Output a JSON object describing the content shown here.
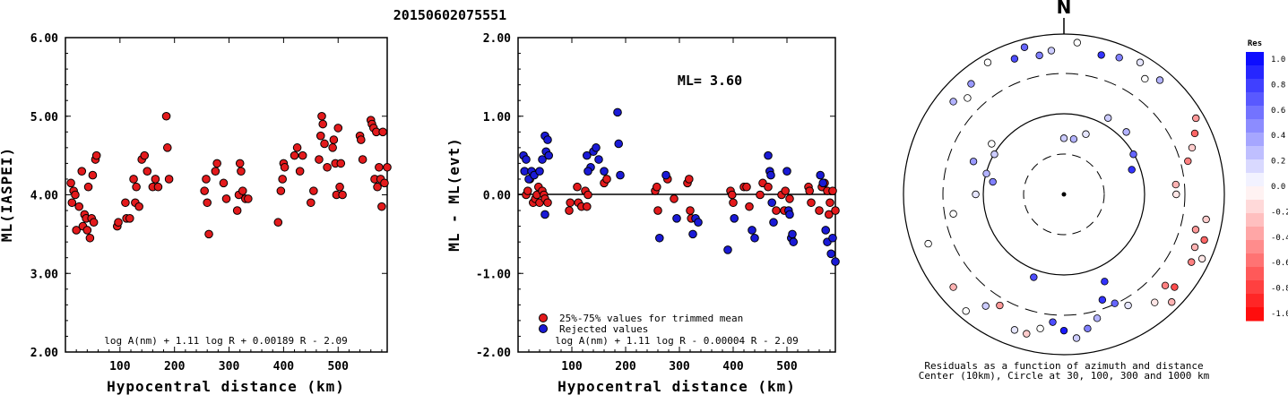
{
  "title": "20150602075551",
  "chart_data": [
    {
      "type": "scatter",
      "ylabel": "ML(IASPEI)",
      "xlabel": "Hypocentral distance (km)",
      "xlim": [
        0,
        590
      ],
      "ylim": [
        2.0,
        6.0
      ],
      "xticks": [
        100,
        200,
        300,
        400,
        500
      ],
      "yticks": [
        2.0,
        3.0,
        4.0,
        5.0,
        6.0
      ],
      "ytick_labels": [
        "2.00",
        "3.00",
        "4.00",
        "5.00",
        "6.00"
      ],
      "formula": "log A(nm) + 1.11 log R + 0.00189 R - 2.09",
      "points_color": "#e31a1c",
      "points": [
        [
          10,
          4.15
        ],
        [
          12,
          3.9
        ],
        [
          15,
          4.05
        ],
        [
          18,
          4.0
        ],
        [
          20,
          3.55
        ],
        [
          25,
          3.85
        ],
        [
          30,
          4.3
        ],
        [
          32,
          3.6
        ],
        [
          35,
          3.75
        ],
        [
          38,
          3.7
        ],
        [
          40,
          3.55
        ],
        [
          42,
          4.1
        ],
        [
          45,
          3.45
        ],
        [
          48,
          3.7
        ],
        [
          50,
          4.25
        ],
        [
          52,
          3.65
        ],
        [
          55,
          4.45
        ],
        [
          57,
          4.5
        ],
        [
          95,
          3.6
        ],
        [
          97,
          3.65
        ],
        [
          110,
          3.9
        ],
        [
          112,
          3.7
        ],
        [
          118,
          3.7
        ],
        [
          125,
          4.2
        ],
        [
          128,
          3.9
        ],
        [
          130,
          4.1
        ],
        [
          135,
          3.85
        ],
        [
          140,
          4.45
        ],
        [
          145,
          4.5
        ],
        [
          150,
          4.3
        ],
        [
          160,
          4.1
        ],
        [
          165,
          4.2
        ],
        [
          170,
          4.1
        ],
        [
          185,
          5.0
        ],
        [
          187,
          4.6
        ],
        [
          190,
          4.2
        ],
        [
          255,
          4.05
        ],
        [
          258,
          4.2
        ],
        [
          260,
          3.9
        ],
        [
          263,
          3.5
        ],
        [
          275,
          4.3
        ],
        [
          278,
          4.4
        ],
        [
          290,
          4.15
        ],
        [
          295,
          3.95
        ],
        [
          315,
          3.8
        ],
        [
          318,
          4.0
        ],
        [
          320,
          4.4
        ],
        [
          322,
          4.3
        ],
        [
          325,
          4.05
        ],
        [
          330,
          3.95
        ],
        [
          335,
          3.95
        ],
        [
          390,
          3.65
        ],
        [
          395,
          4.05
        ],
        [
          398,
          4.2
        ],
        [
          400,
          4.4
        ],
        [
          402,
          4.35
        ],
        [
          420,
          4.5
        ],
        [
          425,
          4.6
        ],
        [
          430,
          4.3
        ],
        [
          435,
          4.5
        ],
        [
          450,
          3.9
        ],
        [
          455,
          4.05
        ],
        [
          465,
          4.45
        ],
        [
          468,
          4.75
        ],
        [
          470,
          5.0
        ],
        [
          472,
          4.9
        ],
        [
          475,
          4.65
        ],
        [
          480,
          4.35
        ],
        [
          490,
          4.6
        ],
        [
          492,
          4.7
        ],
        [
          495,
          4.4
        ],
        [
          497,
          4.0
        ],
        [
          500,
          4.85
        ],
        [
          503,
          4.1
        ],
        [
          505,
          4.4
        ],
        [
          508,
          4.0
        ],
        [
          540,
          4.75
        ],
        [
          542,
          4.7
        ],
        [
          545,
          4.45
        ],
        [
          560,
          4.95
        ],
        [
          562,
          4.9
        ],
        [
          565,
          4.85
        ],
        [
          567,
          4.2
        ],
        [
          570,
          4.8
        ],
        [
          572,
          4.1
        ],
        [
          575,
          4.35
        ],
        [
          578,
          4.2
        ],
        [
          580,
          3.85
        ],
        [
          582,
          4.8
        ],
        [
          585,
          4.15
        ],
        [
          590,
          4.35
        ]
      ]
    },
    {
      "type": "scatter",
      "ylabel": "ML - ML(evt)",
      "xlabel": "Hypocentral distance (km)",
      "xlim": [
        0,
        590
      ],
      "ylim": [
        -2.0,
        2.0
      ],
      "xticks": [
        100,
        200,
        300,
        400,
        500
      ],
      "yticks": [
        -2.0,
        -1.0,
        0.0,
        1.0,
        2.0
      ],
      "ytick_labels": [
        "-2.00",
        "-1.00",
        "0.00",
        "1.00",
        "2.00"
      ],
      "annotation": "ML= 3.60",
      "formula": "log A(nm) + 1.11 log R - 0.00004 R - 2.09",
      "legend": [
        {
          "label": "25%-75% values for trimmed mean",
          "color": "#e31a1c"
        },
        {
          "label": "Rejected values",
          "color": "#1a1ad6"
        }
      ],
      "legend_position": "bottom-left",
      "series": [
        {
          "name": "25%-75% values for trimmed mean",
          "color": "#e31a1c",
          "points": [
            [
              15,
              0.0
            ],
            [
              18,
              0.05
            ],
            [
              22,
              0.2
            ],
            [
              28,
              -0.1
            ],
            [
              32,
              -0.05
            ],
            [
              35,
              0.0
            ],
            [
              38,
              0.1
            ],
            [
              40,
              -0.1
            ],
            [
              45,
              0.05
            ],
            [
              48,
              0.0
            ],
            [
              50,
              -0.05
            ],
            [
              55,
              -0.1
            ],
            [
              95,
              -0.2
            ],
            [
              97,
              -0.1
            ],
            [
              110,
              0.1
            ],
            [
              112,
              -0.1
            ],
            [
              118,
              -0.15
            ],
            [
              125,
              0.05
            ],
            [
              128,
              -0.15
            ],
            [
              130,
              0.0
            ],
            [
              160,
              0.15
            ],
            [
              165,
              0.2
            ],
            [
              255,
              0.05
            ],
            [
              258,
              0.1
            ],
            [
              260,
              -0.2
            ],
            [
              278,
              0.2
            ],
            [
              290,
              -0.05
            ],
            [
              315,
              0.15
            ],
            [
              318,
              0.2
            ],
            [
              320,
              -0.2
            ],
            [
              322,
              -0.3
            ],
            [
              395,
              0.05
            ],
            [
              398,
              0.0
            ],
            [
              400,
              -0.1
            ],
            [
              420,
              0.1
            ],
            [
              425,
              0.1
            ],
            [
              430,
              -0.15
            ],
            [
              450,
              0.0
            ],
            [
              455,
              0.15
            ],
            [
              465,
              0.1
            ],
            [
              480,
              -0.2
            ],
            [
              490,
              0.0
            ],
            [
              495,
              -0.2
            ],
            [
              497,
              0.05
            ],
            [
              505,
              -0.05
            ],
            [
              540,
              0.1
            ],
            [
              542,
              0.05
            ],
            [
              545,
              -0.1
            ],
            [
              560,
              -0.2
            ],
            [
              565,
              0.1
            ],
            [
              570,
              0.15
            ],
            [
              575,
              0.05
            ],
            [
              578,
              -0.25
            ],
            [
              580,
              -0.1
            ],
            [
              585,
              0.05
            ],
            [
              590,
              -0.2
            ]
          ]
        },
        {
          "name": "Rejected values",
          "color": "#1a1ad6",
          "points": [
            [
              10,
              0.5
            ],
            [
              12,
              0.3
            ],
            [
              15,
              0.45
            ],
            [
              20,
              0.2
            ],
            [
              25,
              0.3
            ],
            [
              30,
              0.25
            ],
            [
              40,
              0.3
            ],
            [
              45,
              0.45
            ],
            [
              50,
              0.75
            ],
            [
              52,
              0.55
            ],
            [
              55,
              0.7
            ],
            [
              57,
              0.5
            ],
            [
              50,
              -0.25
            ],
            [
              135,
              0.35
            ],
            [
              140,
              0.55
            ],
            [
              145,
              0.6
            ],
            [
              150,
              0.45
            ],
            [
              130,
              0.3
            ],
            [
              128,
              0.5
            ],
            [
              160,
              0.3
            ],
            [
              185,
              1.05
            ],
            [
              187,
              0.65
            ],
            [
              190,
              0.25
            ],
            [
              263,
              -0.55
            ],
            [
              275,
              0.25
            ],
            [
              295,
              -0.3
            ],
            [
              330,
              -0.3
            ],
            [
              335,
              -0.35
            ],
            [
              325,
              -0.5
            ],
            [
              390,
              -0.7
            ],
            [
              402,
              -0.3
            ],
            [
              435,
              -0.45
            ],
            [
              440,
              -0.55
            ],
            [
              465,
              0.5
            ],
            [
              468,
              0.3
            ],
            [
              470,
              0.25
            ],
            [
              472,
              -0.1
            ],
            [
              475,
              -0.35
            ],
            [
              500,
              0.3
            ],
            [
              503,
              -0.2
            ],
            [
              505,
              -0.25
            ],
            [
              508,
              -0.55
            ],
            [
              510,
              -0.5
            ],
            [
              512,
              -0.6
            ],
            [
              562,
              0.25
            ],
            [
              567,
              0.15
            ],
            [
              572,
              -0.45
            ],
            [
              575,
              -0.6
            ],
            [
              582,
              -0.75
            ],
            [
              585,
              -0.55
            ],
            [
              590,
              -0.85
            ]
          ]
        }
      ]
    }
  ],
  "polar": {
    "north_label": "N",
    "caption_line1": "Residuals as a function of azimuth and distance",
    "caption_line2": "Center (10km), Circle at 30, 100, 300 and 1000 km",
    "colorbar_title": "Res",
    "colorbar_ticks": [
      "1.0",
      "0.8",
      "0.6",
      "0.4",
      "0.2",
      "0.0",
      "-0.2",
      "-0.4",
      "-0.6",
      "-0.8",
      "-1.0"
    ],
    "stations": [
      [
        0,
        0.35,
        0.2
      ],
      [
        10,
        0.35,
        0.3
      ],
      [
        20,
        0.4,
        0.1
      ],
      [
        30,
        0.55,
        0.2
      ],
      [
        45,
        0.55,
        0.3
      ],
      [
        60,
        0.5,
        0.6
      ],
      [
        70,
        0.45,
        0.8
      ],
      [
        85,
        0.7,
        -0.3
      ],
      [
        90,
        0.7,
        -0.1
      ],
      [
        100,
        0.9,
        -0.2
      ],
      [
        105,
        0.85,
        -0.4
      ],
      [
        108,
        0.92,
        -0.6
      ],
      [
        112,
        0.88,
        -0.3
      ],
      [
        115,
        0.95,
        -0.1
      ],
      [
        118,
        0.9,
        -0.5
      ],
      [
        75,
        0.8,
        -0.5
      ],
      [
        70,
        0.85,
        -0.2
      ],
      [
        65,
        0.9,
        -0.6
      ],
      [
        60,
        0.95,
        -0.4
      ],
      [
        130,
        0.9,
        -0.7
      ],
      [
        132,
        0.85,
        -0.5
      ],
      [
        135,
        0.95,
        -0.3
      ],
      [
        140,
        0.88,
        -0.1
      ],
      [
        150,
        0.8,
        0.1
      ],
      [
        155,
        0.75,
        0.6
      ],
      [
        160,
        0.7,
        0.8
      ],
      [
        165,
        0.8,
        0.3
      ],
      [
        170,
        0.85,
        0.5
      ],
      [
        175,
        0.9,
        0.2
      ],
      [
        180,
        0.85,
        0.9
      ],
      [
        185,
        0.8,
        0.7
      ],
      [
        190,
        0.85,
        0.0
      ],
      [
        195,
        0.9,
        -0.2
      ],
      [
        200,
        0.9,
        0.1
      ],
      [
        210,
        0.8,
        -0.4
      ],
      [
        215,
        0.85,
        0.2
      ],
      [
        220,
        0.95,
        0.0
      ],
      [
        230,
        0.9,
        -0.3
      ],
      [
        250,
        0.9,
        0.0
      ],
      [
        260,
        0.7,
        0.0
      ],
      [
        270,
        0.55,
        0.1
      ],
      [
        280,
        0.45,
        0.5
      ],
      [
        285,
        0.5,
        0.3
      ],
      [
        290,
        0.6,
        0.4
      ],
      [
        300,
        0.5,
        0.2
      ],
      [
        305,
        0.55,
        0.0
      ],
      [
        310,
        0.9,
        0.3
      ],
      [
        315,
        0.85,
        0.0
      ],
      [
        320,
        0.9,
        0.4
      ],
      [
        330,
        0.95,
        0.0
      ],
      [
        340,
        0.9,
        0.7
      ],
      [
        345,
        0.95,
        0.6
      ],
      [
        350,
        0.88,
        0.5
      ],
      [
        355,
        0.9,
        0.2
      ],
      [
        5,
        0.95,
        0.0
      ],
      [
        15,
        0.9,
        0.8
      ],
      [
        22,
        0.92,
        0.5
      ],
      [
        30,
        0.95,
        0.1
      ],
      [
        35,
        0.88,
        0.0
      ],
      [
        40,
        0.93,
        0.3
      ],
      [
        155,
        0.6,
        0.8
      ],
      [
        200,
        0.55,
        0.7
      ]
    ]
  }
}
